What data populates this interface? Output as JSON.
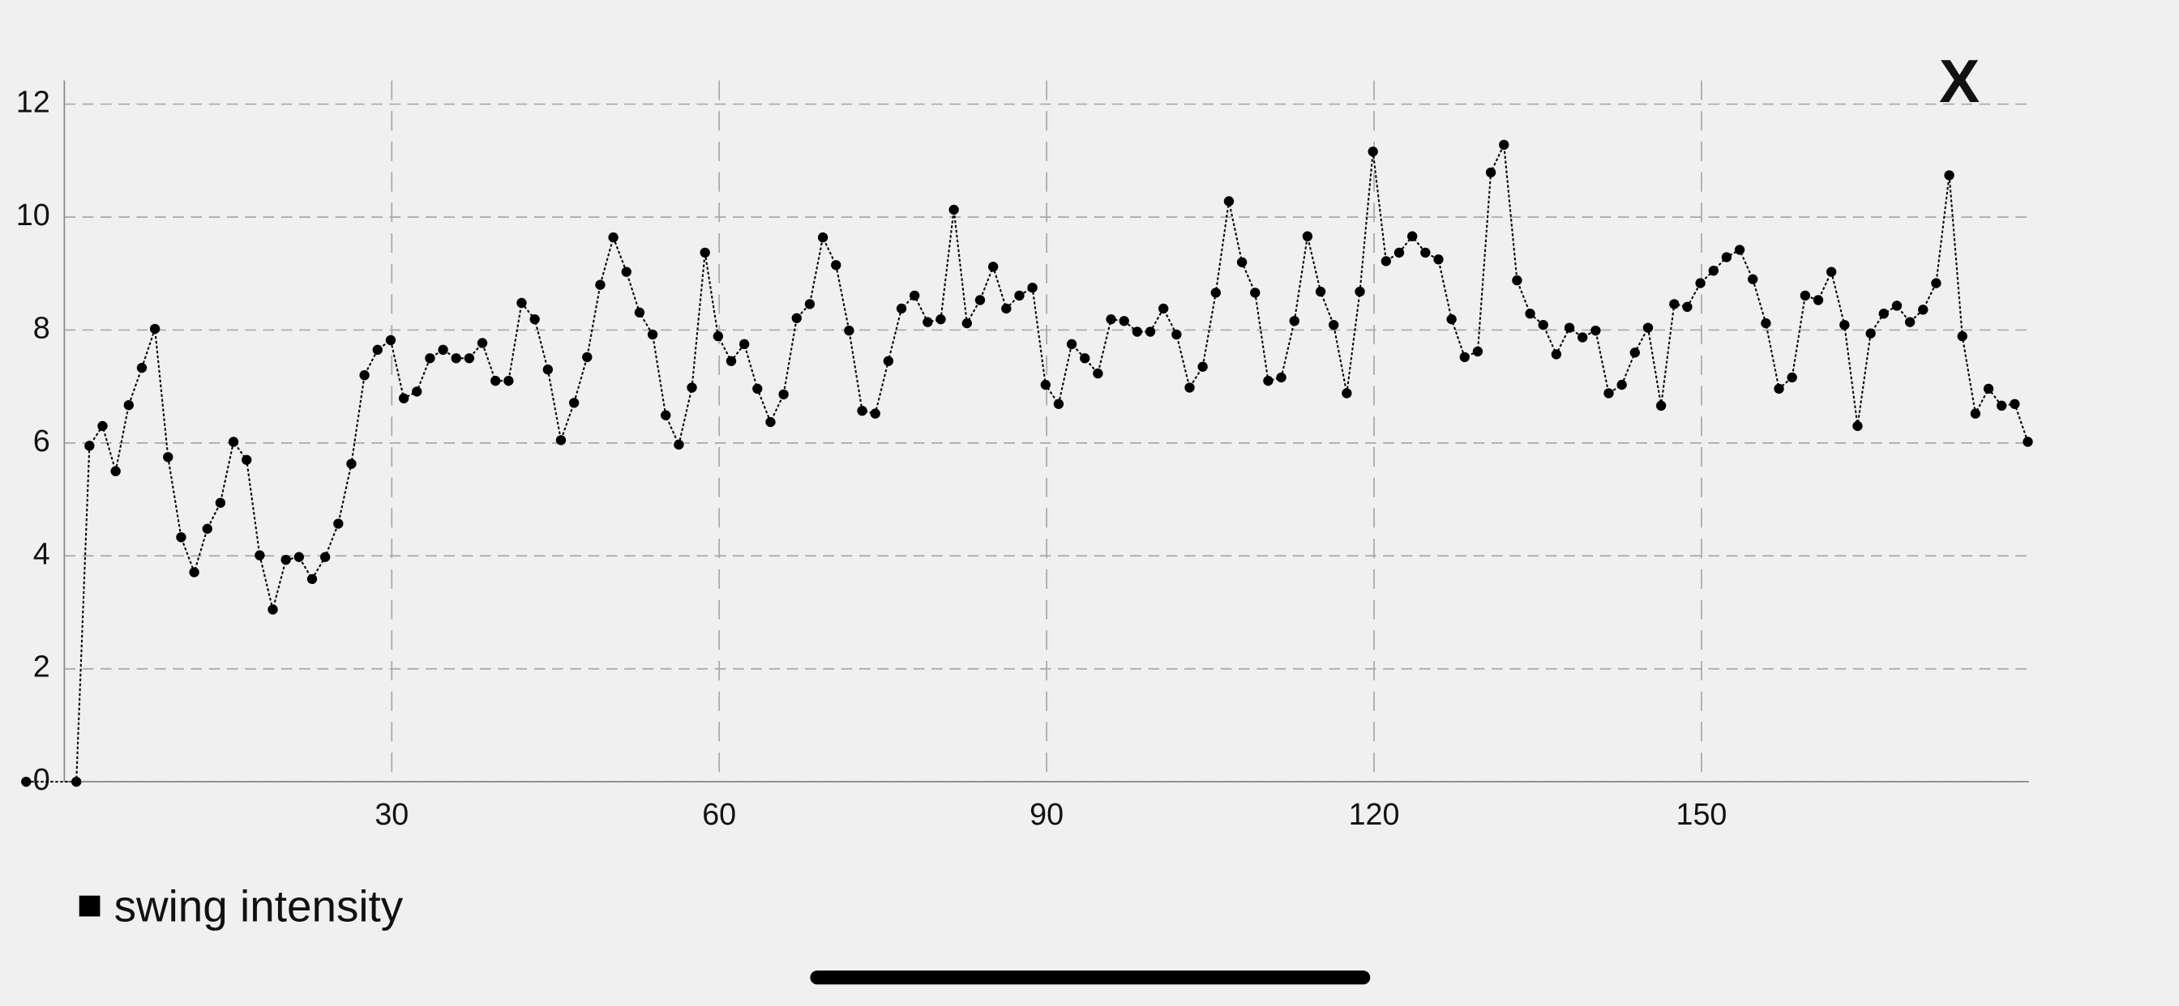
{
  "chart_data": {
    "type": "line",
    "close_button": "X",
    "x": [
      -3.5,
      1.1,
      2.3,
      3.5,
      4.7,
      5.9,
      7.1,
      8.3,
      9.5,
      10.7,
      11.9,
      13.1,
      14.3,
      15.5,
      16.7,
      17.9,
      19.1,
      20.3,
      21.5,
      22.7,
      23.9,
      25.1,
      26.3,
      27.5,
      28.7,
      29.9,
      31.1,
      32.3,
      33.5,
      34.7,
      35.9,
      37.1,
      38.3,
      39.5,
      40.7,
      41.9,
      43.1,
      44.3,
      45.5,
      46.7,
      47.9,
      49.1,
      50.3,
      51.5,
      52.7,
      53.9,
      55.1,
      56.3,
      57.5,
      58.7,
      59.9,
      61.1,
      62.3,
      63.5,
      64.7,
      65.9,
      67.1,
      68.3,
      69.5,
      70.7,
      71.9,
      73.1,
      74.3,
      75.5,
      76.7,
      77.9,
      79.1,
      80.3,
      81.5,
      82.7,
      83.9,
      85.1,
      86.3,
      87.5,
      88.7,
      89.9,
      91.1,
      92.3,
      93.5,
      94.7,
      95.9,
      97.1,
      98.3,
      99.5,
      100.7,
      101.9,
      103.1,
      104.3,
      105.5,
      106.7,
      107.9,
      109.1,
      110.3,
      111.5,
      112.7,
      113.9,
      115.1,
      116.3,
      117.5,
      118.7,
      119.9,
      121.1,
      122.3,
      123.5,
      124.7,
      125.9,
      127.1,
      128.3,
      129.5,
      130.7,
      131.9,
      133.1,
      134.3,
      135.5,
      136.7,
      137.9,
      139.1,
      140.3,
      141.5,
      142.7,
      143.9,
      145.1,
      146.3,
      147.5,
      148.7,
      149.9,
      151.1,
      152.3,
      153.5,
      154.7,
      155.9,
      157.1,
      158.3,
      159.5,
      160.7,
      161.9,
      163.1,
      164.3,
      165.5,
      166.7,
      167.9,
      169.1,
      170.3,
      171.5,
      172.7,
      173.9,
      175.1,
      176.3,
      177.5,
      178.7,
      179.9
    ],
    "series": [
      {
        "name": "swing intensity",
        "color": "#000000",
        "values": [
          0,
          0,
          5.95,
          6.3,
          5.5,
          6.67,
          7.33,
          8.02,
          5.75,
          4.33,
          3.71,
          4.48,
          4.94,
          6.02,
          5.7,
          4.01,
          3.05,
          3.93,
          3.98,
          3.59,
          3.98,
          4.57,
          5.63,
          7.2,
          7.65,
          7.82,
          6.79,
          6.91,
          7.5,
          7.65,
          7.5,
          7.5,
          7.77,
          7.1,
          7.1,
          8.48,
          8.19,
          7.3,
          6.05,
          6.71,
          7.52,
          8.8,
          9.64,
          9.03,
          8.31,
          7.92,
          6.49,
          5.97,
          6.98,
          9.37,
          7.89,
          7.45,
          7.75,
          6.96,
          6.37,
          6.86,
          8.21,
          8.46,
          9.64,
          9.15,
          7.99,
          6.57,
          6.52,
          7.45,
          8.38,
          8.61,
          8.14,
          8.19,
          10.13,
          8.12,
          8.53,
          9.12,
          8.38,
          8.61,
          8.75,
          7.03,
          6.69,
          7.75,
          7.5,
          7.23,
          8.19,
          8.16,
          7.97,
          7.97,
          8.38,
          7.92,
          6.98,
          7.35,
          8.66,
          10.28,
          9.2,
          8.66,
          7.1,
          7.16,
          8.16,
          9.66,
          8.68,
          8.09,
          6.88,
          8.68,
          11.16,
          9.22,
          9.37,
          9.66,
          9.37,
          9.25,
          8.19,
          7.52,
          7.62,
          10.79,
          11.28,
          8.88,
          8.29,
          8.09,
          7.57,
          8.04,
          7.87,
          7.99,
          6.88,
          7.03,
          7.6,
          8.04,
          6.66,
          8.46,
          8.41,
          8.83,
          9.05,
          9.29,
          9.42,
          8.9,
          8.12,
          6.96,
          7.16,
          8.61,
          8.53,
          9.03,
          8.09,
          6.3,
          7.94,
          8.29,
          8.43,
          8.14,
          8.36,
          8.83,
          10.74,
          7.89,
          6.52,
          6.96,
          6.66,
          6.69,
          6.02
        ]
      }
    ],
    "xlim": [
      0,
      180
    ],
    "xticks": [
      30,
      60,
      90,
      120,
      150
    ],
    "ylim": [
      0,
      12
    ],
    "yticks": [
      0,
      2,
      4,
      6,
      8,
      10,
      12
    ],
    "grid": true
  }
}
